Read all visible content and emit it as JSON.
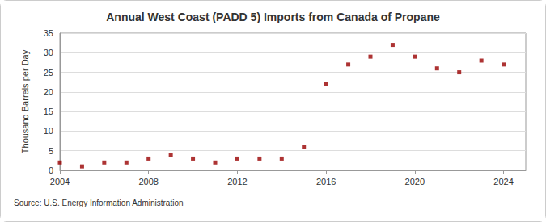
{
  "chart_data": {
    "type": "scatter",
    "title": "Annual West Coast (PADD 5) Imports from Canada of Propane",
    "y_label": "Thousand Barrels per Day",
    "source": "Source: U.S. Energy Information Administration",
    "x": [
      2004,
      2005,
      2006,
      2007,
      2008,
      2009,
      2010,
      2011,
      2012,
      2013,
      2014,
      2015,
      2016,
      2017,
      2018,
      2019,
      2020,
      2021,
      2022,
      2023,
      2024
    ],
    "values": [
      2,
      1,
      2,
      2,
      3,
      4,
      3,
      2,
      3,
      3,
      3,
      6,
      22,
      27,
      29,
      32,
      29,
      26,
      25,
      28,
      27
    ],
    "color": "#990000",
    "marker": "square",
    "xlim": [
      2004,
      2025
    ],
    "xticks": [
      2004,
      2008,
      2012,
      2016,
      2020,
      2024
    ],
    "ylim": [
      0,
      35
    ],
    "yticks": [
      0,
      5,
      10,
      15,
      20,
      25,
      30,
      35
    ],
    "grid": true
  }
}
